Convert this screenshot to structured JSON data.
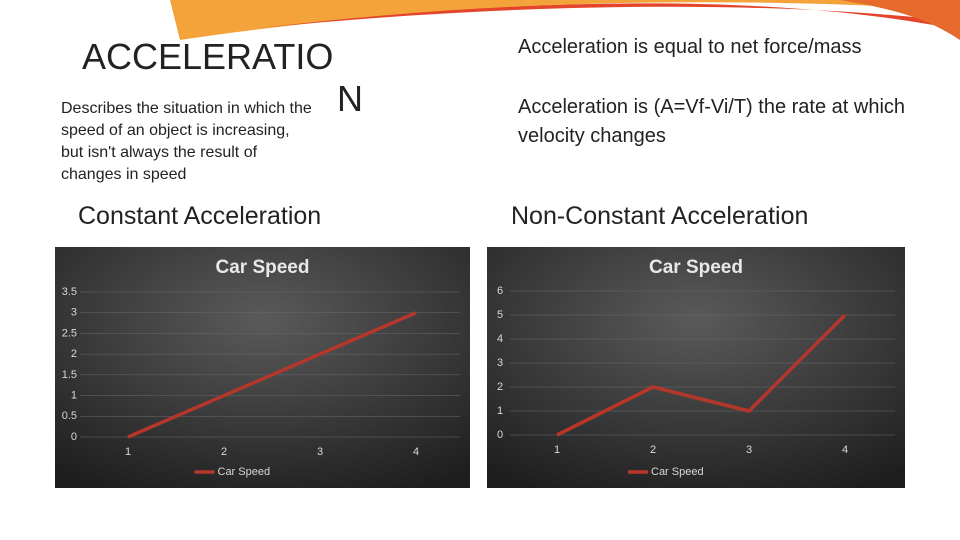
{
  "slide": {
    "title": [
      "ACCELERATIO",
      "N"
    ],
    "description": "Describes the situation in which the speed of an object is increasing, but isn't always the result of changes in speed",
    "point_1": "Acceleration is equal to net force/mass",
    "point_2": "Acceleration is (A=Vf-Vi/T) the rate at which velocity changes",
    "heading_left": "Constant Acceleration",
    "heading_right": "Non-Constant Acceleration"
  },
  "chart_data": [
    {
      "type": "line",
      "title": "Car Speed",
      "categories": [
        "1",
        "2",
        "3",
        "4"
      ],
      "series": [
        {
          "name": "Car Speed",
          "color": "#b5362a",
          "values": [
            0,
            1,
            2,
            3
          ]
        }
      ],
      "ylim": [
        0,
        3.5
      ],
      "yticks": [
        0,
        0.5,
        1,
        1.5,
        2,
        2.5,
        3,
        3.5
      ],
      "grid": true,
      "legend": "bottom"
    },
    {
      "type": "line",
      "title": "Car Speed",
      "categories": [
        "1",
        "2",
        "3",
        "4"
      ],
      "series": [
        {
          "name": "Car Speed",
          "color": "#b5362a",
          "values": [
            0,
            2,
            1,
            5
          ]
        }
      ],
      "ylim": [
        0,
        6
      ],
      "yticks": [
        0,
        1,
        2,
        3,
        4,
        5,
        6
      ],
      "grid": true,
      "legend": "bottom"
    }
  ]
}
